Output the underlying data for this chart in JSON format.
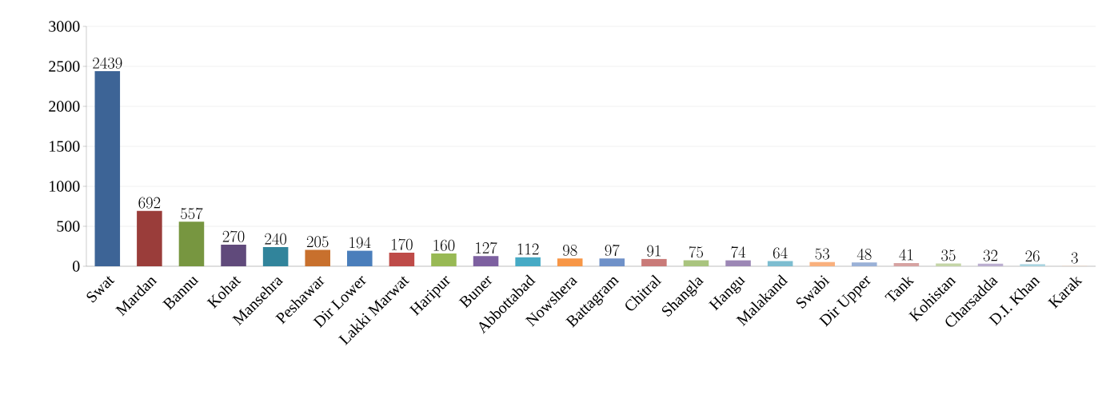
{
  "chart_data": {
    "type": "bar",
    "categories": [
      "Swat",
      "Mardan",
      "Bannu",
      "Kohat",
      "Mansehra",
      "Peshawar",
      "Dir Lower",
      "Lakki Marwat",
      "Haripur",
      "Buner",
      "Abbottabad",
      "Nowshera",
      "Battagram",
      "Chitral",
      "Shangla",
      "Hangu",
      "Malakand",
      "Swabi",
      "Dir Upper",
      "Tank",
      "Kohistan",
      "Charsadda",
      "D.I. Khan",
      "Karak"
    ],
    "values": [
      2439,
      692,
      557,
      270,
      240,
      205,
      194,
      170,
      160,
      127,
      112,
      98,
      97,
      91,
      75,
      74,
      64,
      53,
      48,
      41,
      35,
      32,
      26,
      3
    ],
    "colors": [
      "#3d6496",
      "#9a3d3a",
      "#779640",
      "#604a7b",
      "#31849b",
      "#c8702d",
      "#4a7ebb",
      "#be4b48",
      "#98b954",
      "#7d60a0",
      "#46aac5",
      "#f79646",
      "#6f91c8",
      "#c97a78",
      "#a9c47e",
      "#9c87b5",
      "#7dbdd0",
      "#f9b07d",
      "#9ab1d7",
      "#d6a3a2",
      "#c4d5a7",
      "#bbaed0",
      "#a9d3df",
      "#fbc8a3"
    ],
    "ylim": [
      0,
      3000
    ],
    "yticks": [
      0,
      500,
      1000,
      1500,
      2000,
      2500,
      3000
    ],
    "grid": "y",
    "data_labels": true
  }
}
